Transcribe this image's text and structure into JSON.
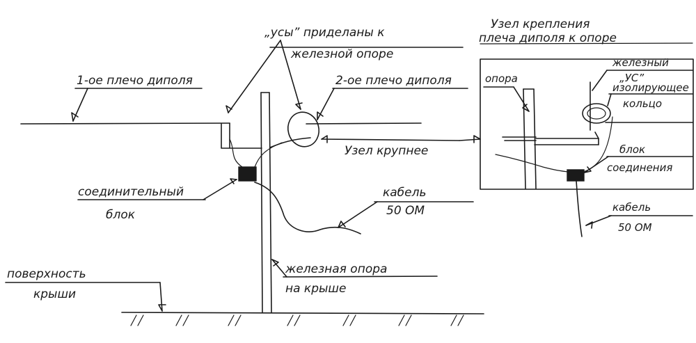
{
  "labels": {
    "us_line1": "„усы” приделаны к",
    "us_line2": "железной опоре",
    "arm1": "1-ое плечо диполя",
    "arm2": "2-ое плечо диполя",
    "node_larger": "Узел крупнее",
    "connector_line1": "соединительный",
    "connector_line2": "блок",
    "cable_line1": "кабель",
    "cable_line2": "50 ОМ",
    "roof_line1": "поверхность",
    "roof_line2": "крыши",
    "mast_line1": "железная опора",
    "mast_line2": "на крыше"
  },
  "inset": {
    "title_line1": "Узел крепления",
    "title_line2": "плеча диполя к опоре",
    "support": "опора",
    "iron_line1": "железный",
    "iron_line2": "„УС”",
    "ring_line1": "изолирующее",
    "ring_line2": "кольцо",
    "block_line1": "блок",
    "block_line2": "соединения",
    "cable_line1": "кабель",
    "cable_line2": "50 ОМ"
  }
}
